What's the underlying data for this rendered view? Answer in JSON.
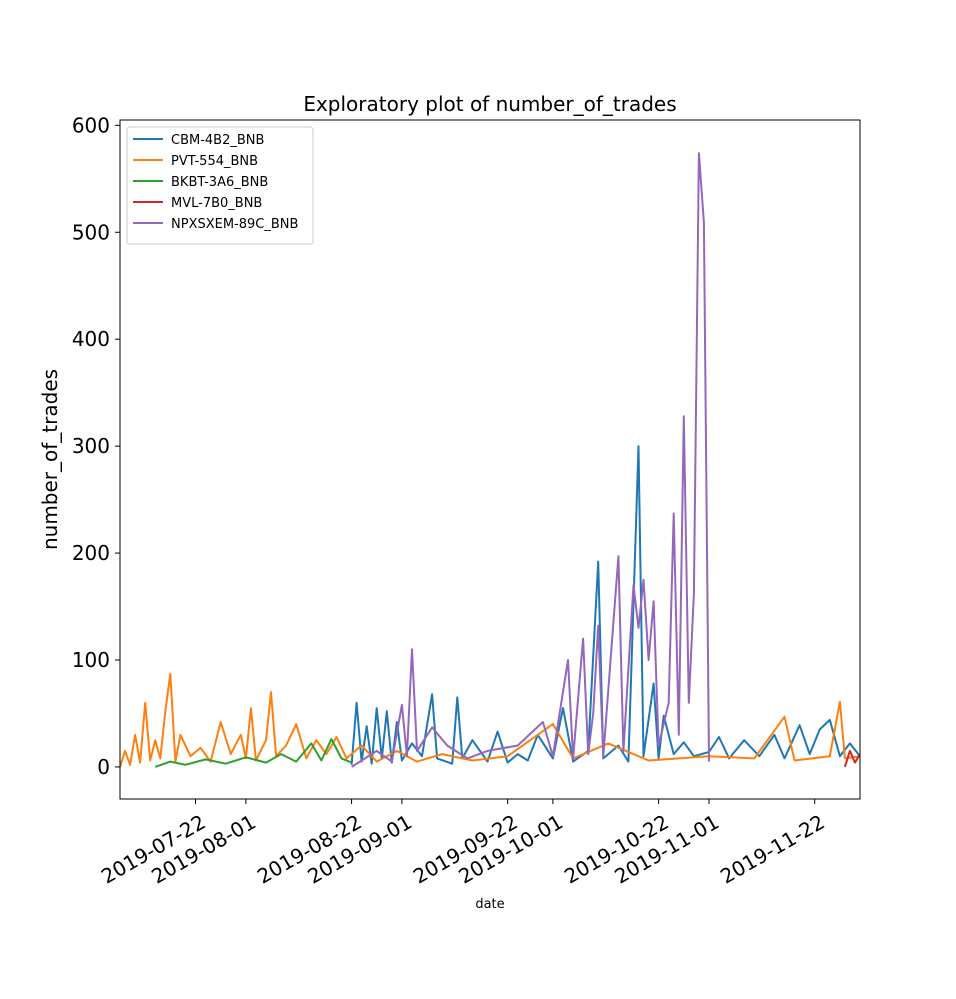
{
  "chart_data": {
    "type": "line",
    "title": "Exploratory plot of number_of_trades",
    "xlabel": "date",
    "ylabel": "number_of_trades",
    "ylim": [
      -30,
      605
    ],
    "xlim": [
      "2019-07-07",
      "2019-12-01"
    ],
    "yticks": [
      0,
      100,
      200,
      300,
      400,
      500,
      600
    ],
    "xticks": [
      {
        "label": "2019-07-22",
        "date": "2019-07-22"
      },
      {
        "label": "2019-08-01",
        "date": "2019-08-01"
      },
      {
        "label": "2019-08-22",
        "date": "2019-08-22"
      },
      {
        "label": "2019-09-01",
        "date": "2019-09-01"
      },
      {
        "label": "2019-09-22",
        "date": "2019-09-22"
      },
      {
        "label": "2019-10-01",
        "date": "2019-10-01"
      },
      {
        "label": "2019-10-22",
        "date": "2019-10-22"
      },
      {
        "label": "2019-11-01",
        "date": "2019-11-01"
      },
      {
        "label": "2019-11-22",
        "date": "2019-11-22"
      }
    ],
    "legend_position": "top-left",
    "series": [
      {
        "name": "CBM-4B2_BNB",
        "color": "#1f77b4",
        "points": [
          [
            "2019-08-22",
            2
          ],
          [
            "2019-08-23",
            60
          ],
          [
            "2019-08-24",
            5
          ],
          [
            "2019-08-25",
            38
          ],
          [
            "2019-08-26",
            3
          ],
          [
            "2019-08-27",
            55
          ],
          [
            "2019-08-28",
            8
          ],
          [
            "2019-08-29",
            52
          ],
          [
            "2019-08-30",
            4
          ],
          [
            "2019-08-31",
            42
          ],
          [
            "2019-09-01",
            6
          ],
          [
            "2019-09-03",
            22
          ],
          [
            "2019-09-05",
            10
          ],
          [
            "2019-09-07",
            68
          ],
          [
            "2019-09-08",
            8
          ],
          [
            "2019-09-11",
            3
          ],
          [
            "2019-09-12",
            65
          ],
          [
            "2019-09-13",
            8
          ],
          [
            "2019-09-15",
            25
          ],
          [
            "2019-09-18",
            5
          ],
          [
            "2019-09-20",
            33
          ],
          [
            "2019-09-22",
            4
          ],
          [
            "2019-09-24",
            12
          ],
          [
            "2019-09-26",
            6
          ],
          [
            "2019-09-28",
            30
          ],
          [
            "2019-10-01",
            8
          ],
          [
            "2019-10-03",
            55
          ],
          [
            "2019-10-05",
            5
          ],
          [
            "2019-10-08",
            15
          ],
          [
            "2019-10-10",
            192
          ],
          [
            "2019-10-11",
            8
          ],
          [
            "2019-10-14",
            20
          ],
          [
            "2019-10-16",
            5
          ],
          [
            "2019-10-18",
            300
          ],
          [
            "2019-10-19",
            10
          ],
          [
            "2019-10-21",
            78
          ],
          [
            "2019-10-22",
            8
          ],
          [
            "2019-10-23",
            48
          ],
          [
            "2019-10-25",
            12
          ],
          [
            "2019-10-27",
            23
          ],
          [
            "2019-10-29",
            10
          ],
          [
            "2019-11-01",
            14
          ],
          [
            "2019-11-03",
            28
          ],
          [
            "2019-11-05",
            8
          ],
          [
            "2019-11-08",
            25
          ],
          [
            "2019-11-11",
            10
          ],
          [
            "2019-11-14",
            30
          ],
          [
            "2019-11-16",
            8
          ],
          [
            "2019-11-19",
            39
          ],
          [
            "2019-11-21",
            12
          ],
          [
            "2019-11-23",
            35
          ],
          [
            "2019-11-25",
            44
          ],
          [
            "2019-11-27",
            10
          ],
          [
            "2019-11-29",
            22
          ],
          [
            "2019-12-01",
            10
          ]
        ]
      },
      {
        "name": "PVT-554_BNB",
        "color": "#ff7f0e",
        "points": [
          [
            "2019-07-07",
            0
          ],
          [
            "2019-07-08",
            15
          ],
          [
            "2019-07-09",
            2
          ],
          [
            "2019-07-10",
            30
          ],
          [
            "2019-07-11",
            4
          ],
          [
            "2019-07-12",
            60
          ],
          [
            "2019-07-13",
            6
          ],
          [
            "2019-07-14",
            25
          ],
          [
            "2019-07-15",
            8
          ],
          [
            "2019-07-16",
            52
          ],
          [
            "2019-07-17",
            87
          ],
          [
            "2019-07-18",
            5
          ],
          [
            "2019-07-19",
            30
          ],
          [
            "2019-07-21",
            10
          ],
          [
            "2019-07-23",
            18
          ],
          [
            "2019-07-25",
            5
          ],
          [
            "2019-07-27",
            42
          ],
          [
            "2019-07-29",
            12
          ],
          [
            "2019-07-31",
            30
          ],
          [
            "2019-08-01",
            8
          ],
          [
            "2019-08-02",
            55
          ],
          [
            "2019-08-03",
            6
          ],
          [
            "2019-08-05",
            25
          ],
          [
            "2019-08-06",
            70
          ],
          [
            "2019-08-07",
            10
          ],
          [
            "2019-08-09",
            20
          ],
          [
            "2019-08-11",
            40
          ],
          [
            "2019-08-13",
            8
          ],
          [
            "2019-08-15",
            25
          ],
          [
            "2019-08-17",
            12
          ],
          [
            "2019-08-19",
            28
          ],
          [
            "2019-08-21",
            8
          ],
          [
            "2019-08-24",
            20
          ],
          [
            "2019-08-27",
            5
          ],
          [
            "2019-08-31",
            15
          ],
          [
            "2019-09-04",
            5
          ],
          [
            "2019-09-09",
            12
          ],
          [
            "2019-09-15",
            6
          ],
          [
            "2019-09-22",
            10
          ],
          [
            "2019-10-01",
            40
          ],
          [
            "2019-10-05",
            8
          ],
          [
            "2019-10-12",
            22
          ],
          [
            "2019-10-20",
            6
          ],
          [
            "2019-11-01",
            10
          ],
          [
            "2019-11-10",
            8
          ],
          [
            "2019-11-16",
            47
          ],
          [
            "2019-11-18",
            6
          ],
          [
            "2019-11-25",
            10
          ],
          [
            "2019-11-27",
            61
          ],
          [
            "2019-11-28",
            8
          ],
          [
            "2019-12-01",
            10
          ]
        ]
      },
      {
        "name": "BKBT-3A6_BNB",
        "color": "#2ca02c",
        "points": [
          [
            "2019-07-14",
            0
          ],
          [
            "2019-07-17",
            5
          ],
          [
            "2019-07-20",
            2
          ],
          [
            "2019-07-24",
            7
          ],
          [
            "2019-07-28",
            3
          ],
          [
            "2019-08-01",
            9
          ],
          [
            "2019-08-05",
            4
          ],
          [
            "2019-08-08",
            12
          ],
          [
            "2019-08-11",
            5
          ],
          [
            "2019-08-14",
            22
          ],
          [
            "2019-08-16",
            6
          ],
          [
            "2019-08-18",
            26
          ],
          [
            "2019-08-20",
            8
          ],
          [
            "2019-08-22",
            4
          ]
        ]
      },
      {
        "name": "MVL-7B0_BNB",
        "color": "#d62728",
        "points": [
          [
            "2019-11-28",
            0
          ],
          [
            "2019-11-29",
            15
          ],
          [
            "2019-11-30",
            4
          ],
          [
            "2019-12-01",
            12
          ]
        ]
      },
      {
        "name": "NPXSXEM-89C_BNB",
        "color": "#9467bd",
        "points": [
          [
            "2019-08-22",
            0
          ],
          [
            "2019-08-27",
            15
          ],
          [
            "2019-08-30",
            5
          ],
          [
            "2019-09-01",
            58
          ],
          [
            "2019-09-02",
            10
          ],
          [
            "2019-09-03",
            110
          ],
          [
            "2019-09-04",
            15
          ],
          [
            "2019-09-07",
            37
          ],
          [
            "2019-09-10",
            20
          ],
          [
            "2019-09-14",
            8
          ],
          [
            "2019-09-18",
            15
          ],
          [
            "2019-09-24",
            20
          ],
          [
            "2019-09-29",
            42
          ],
          [
            "2019-10-01",
            10
          ],
          [
            "2019-10-04",
            100
          ],
          [
            "2019-10-05",
            8
          ],
          [
            "2019-10-07",
            120
          ],
          [
            "2019-10-08",
            12
          ],
          [
            "2019-10-09",
            50
          ],
          [
            "2019-10-10",
            132
          ],
          [
            "2019-10-11",
            10
          ],
          [
            "2019-10-14",
            197
          ],
          [
            "2019-10-15",
            15
          ],
          [
            "2019-10-17",
            170
          ],
          [
            "2019-10-18",
            130
          ],
          [
            "2019-10-19",
            175
          ],
          [
            "2019-10-20",
            100
          ],
          [
            "2019-10-21",
            155
          ],
          [
            "2019-10-22",
            20
          ],
          [
            "2019-10-24",
            60
          ],
          [
            "2019-10-25",
            237
          ],
          [
            "2019-10-26",
            30
          ],
          [
            "2019-10-27",
            328
          ],
          [
            "2019-10-28",
            60
          ],
          [
            "2019-10-29",
            162
          ],
          [
            "2019-10-30",
            574
          ],
          [
            "2019-10-31",
            509
          ],
          [
            "2019-11-01",
            5
          ]
        ]
      }
    ]
  }
}
